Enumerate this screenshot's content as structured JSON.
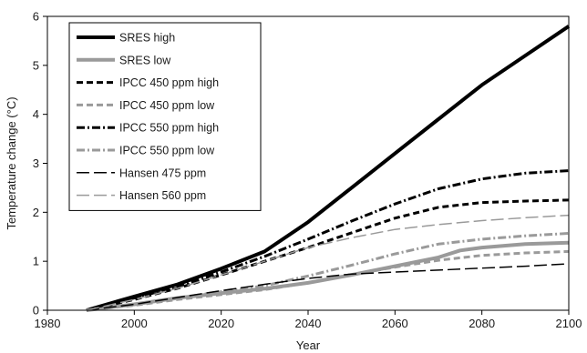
{
  "chart_data": {
    "type": "line",
    "title": "",
    "xlabel": "Year",
    "ylabel": "Temperature change (°C)",
    "xlim": [
      1980,
      2100
    ],
    "ylim": [
      0,
      6
    ],
    "xticks": [
      1980,
      2000,
      2020,
      2040,
      2060,
      2080,
      2100
    ],
    "yticks": [
      0,
      1,
      2,
      3,
      4,
      5,
      6
    ],
    "grid": false,
    "legend_position": "top-left",
    "series": [
      {
        "name": "SRES high",
        "color": "#000000",
        "dash": "solid",
        "weight": "thick",
        "x": [
          1989,
          2000,
          2010,
          2020,
          2030,
          2040,
          2050,
          2060,
          2070,
          2080,
          2090,
          2100
        ],
        "y": [
          0,
          0.28,
          0.53,
          0.85,
          1.2,
          1.8,
          2.5,
          3.2,
          3.9,
          4.6,
          5.2,
          5.8
        ]
      },
      {
        "name": "SRES low",
        "color": "#9a9a9a",
        "dash": "solid",
        "weight": "thick",
        "x": [
          1989,
          2000,
          2010,
          2020,
          2030,
          2040,
          2050,
          2060,
          2070,
          2075,
          2080,
          2090,
          2100
        ],
        "y": [
          0,
          0.12,
          0.25,
          0.35,
          0.44,
          0.56,
          0.72,
          0.9,
          1.08,
          1.22,
          1.28,
          1.35,
          1.38
        ]
      },
      {
        "name": "IPCC 450 ppm high",
        "color": "#000000",
        "dash": "dash",
        "weight": "medium",
        "x": [
          1989,
          2000,
          2010,
          2020,
          2030,
          2040,
          2050,
          2060,
          2070,
          2080,
          2090,
          2100
        ],
        "y": [
          0,
          0.22,
          0.45,
          0.72,
          1.0,
          1.28,
          1.58,
          1.88,
          2.1,
          2.2,
          2.23,
          2.25
        ]
      },
      {
        "name": "IPCC 450 ppm low",
        "color": "#9a9a9a",
        "dash": "dash",
        "weight": "medium",
        "x": [
          1989,
          2000,
          2010,
          2020,
          2030,
          2040,
          2050,
          2060,
          2070,
          2080,
          2090,
          2100
        ],
        "y": [
          0,
          0.1,
          0.22,
          0.32,
          0.42,
          0.56,
          0.72,
          0.88,
          1.02,
          1.12,
          1.17,
          1.2
        ]
      },
      {
        "name": "IPCC 550 ppm high",
        "color": "#000000",
        "dash": "dashdot",
        "weight": "medium",
        "x": [
          1989,
          2000,
          2010,
          2020,
          2030,
          2040,
          2050,
          2060,
          2070,
          2080,
          2090,
          2100
        ],
        "y": [
          0,
          0.25,
          0.48,
          0.78,
          1.1,
          1.45,
          1.82,
          2.17,
          2.48,
          2.68,
          2.8,
          2.85
        ]
      },
      {
        "name": "IPCC 550 ppm low",
        "color": "#9a9a9a",
        "dash": "dashdot",
        "weight": "medium",
        "x": [
          1989,
          2000,
          2010,
          2020,
          2030,
          2040,
          2050,
          2060,
          2070,
          2080,
          2090,
          2100
        ],
        "y": [
          0,
          0.12,
          0.25,
          0.38,
          0.5,
          0.7,
          0.92,
          1.15,
          1.35,
          1.45,
          1.52,
          1.57
        ]
      },
      {
        "name": "Hansen 475 ppm",
        "color": "#000000",
        "dash": "longdash",
        "weight": "thin",
        "x": [
          1989,
          2000,
          2010,
          2020,
          2030,
          2040,
          2050,
          2060,
          2070,
          2080,
          2090,
          2100
        ],
        "y": [
          0,
          0.12,
          0.26,
          0.4,
          0.53,
          0.65,
          0.74,
          0.78,
          0.82,
          0.86,
          0.9,
          0.95
        ]
      },
      {
        "name": "Hansen 560 ppm",
        "color": "#9a9a9a",
        "dash": "longdash",
        "weight": "thin",
        "x": [
          1989,
          2000,
          2010,
          2020,
          2030,
          2040,
          2050,
          2060,
          2070,
          2080,
          2090,
          2100
        ],
        "y": [
          0,
          0.22,
          0.45,
          0.72,
          1.0,
          1.28,
          1.48,
          1.65,
          1.75,
          1.83,
          1.89,
          1.94
        ]
      }
    ]
  }
}
